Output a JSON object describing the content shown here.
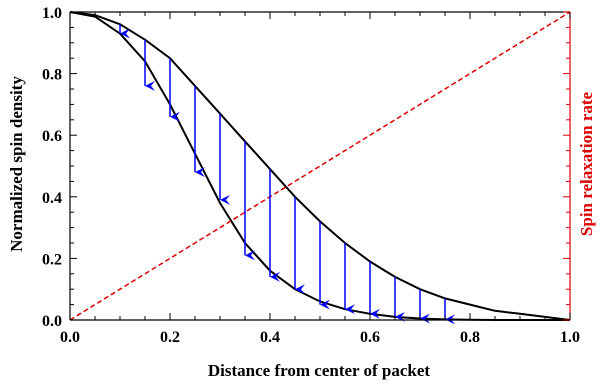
{
  "chart_data": {
    "type": "line",
    "title": "",
    "xlabel": "Distance from center of packet",
    "ylabel": "Normalized spin density",
    "ylabel_right": "Spin relaxation rate",
    "xlim": [
      0.0,
      1.0
    ],
    "ylim": [
      0.0,
      1.0
    ],
    "x_ticks": [
      "0.0",
      "0.2",
      "0.4",
      "0.6",
      "0.8",
      "1.0"
    ],
    "y_ticks": [
      "0.0",
      "0.2",
      "0.4",
      "0.6",
      "0.8",
      "1.0"
    ],
    "grid": false,
    "series": [
      {
        "color": "#000000",
        "style": "solid",
        "x": [
          0.0,
          0.05,
          0.1,
          0.15,
          0.2,
          0.25,
          0.3,
          0.35,
          0.4,
          0.45,
          0.5,
          0.55,
          0.6,
          0.65,
          0.7,
          0.75,
          0.8,
          0.85,
          0.9,
          0.95,
          1.0
        ],
        "y": [
          1.0,
          0.99,
          0.96,
          0.91,
          0.85,
          0.76,
          0.67,
          0.58,
          0.49,
          0.4,
          0.32,
          0.25,
          0.19,
          0.14,
          0.1,
          0.07,
          0.05,
          0.03,
          0.02,
          0.01,
          0.0
        ]
      },
      {
        "color": "#000000",
        "style": "solid",
        "x": [
          0.0,
          0.05,
          0.1,
          0.15,
          0.2,
          0.25,
          0.3,
          0.35,
          0.4,
          0.45,
          0.5,
          0.55,
          0.6,
          0.65,
          0.7,
          0.75,
          0.8,
          0.85,
          0.9,
          0.95,
          1.0
        ],
        "y": [
          1.0,
          0.985,
          0.93,
          0.84,
          0.7,
          0.54,
          0.38,
          0.25,
          0.16,
          0.1,
          0.06,
          0.035,
          0.02,
          0.01,
          0.005,
          0.002,
          0.001,
          0.0,
          0.0,
          0.0,
          0.0
        ]
      },
      {
        "color": "#dd0000",
        "style": "dashed",
        "x": [
          0.0,
          1.0
        ],
        "y": [
          0.0,
          1.0
        ]
      }
    ],
    "arrows": {
      "color": "#0000ff",
      "x": [
        0.1,
        0.15,
        0.2,
        0.25,
        0.3,
        0.35,
        0.4,
        0.45,
        0.5,
        0.55,
        0.6,
        0.65,
        0.7,
        0.75
      ],
      "y_from": [
        0.96,
        0.91,
        0.85,
        0.76,
        0.67,
        0.58,
        0.49,
        0.4,
        0.32,
        0.25,
        0.19,
        0.14,
        0.1,
        0.07
      ],
      "y_to": [
        0.93,
        0.76,
        0.66,
        0.48,
        0.39,
        0.21,
        0.14,
        0.1,
        0.05,
        0.035,
        0.02,
        0.01,
        0.005,
        0.002
      ]
    }
  }
}
